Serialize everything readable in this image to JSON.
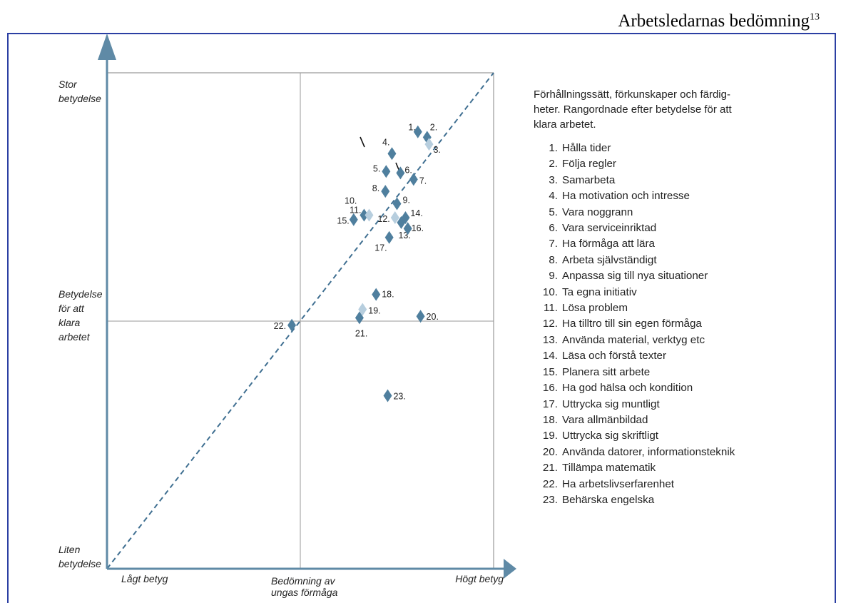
{
  "header": {
    "title": "Arbetsledarnas bedömning",
    "superscript": "13"
  },
  "chart_data": {
    "type": "scatter",
    "description_title": "Förhållningssätt, förkunskaper och färdigheter. Rangordnade efter betydelse för att klara arbetet.",
    "description_title_lines": [
      "Förhållningssätt, förkunskaper och färdig-",
      "heter. Rangordnade efter betydelse för att",
      "klara arbetet."
    ],
    "y_axis_labels": {
      "top": [
        "Stor",
        "betydelse"
      ],
      "middle": [
        "Betydelse",
        "för att",
        "klara",
        "arbetet"
      ],
      "bottom": [
        "Liten",
        "betydelse"
      ]
    },
    "x_axis_labels": {
      "left": "Lågt betyg",
      "middle": [
        "Bedömning av",
        "ungas förmåga"
      ],
      "right": "Högt betyg"
    },
    "xlim": [
      0,
      100
    ],
    "ylim": [
      0,
      100
    ],
    "points": [
      {
        "id": "1",
        "x": 80.4,
        "y": 88.1,
        "color": "#4f7f9e"
      },
      {
        "id": "2",
        "x": 82.8,
        "y": 87.0,
        "color": "#4f7f9e"
      },
      {
        "id": "3",
        "x": 83.3,
        "y": 85.6,
        "color": "#b7cede"
      },
      {
        "id": "4",
        "x": 73.7,
        "y": 83.7,
        "color": "#4f7f9e"
      },
      {
        "id": "5",
        "x": 72.2,
        "y": 80.1,
        "color": "#4f7f9e"
      },
      {
        "id": "6",
        "x": 75.9,
        "y": 79.8,
        "color": "#4f7f9e"
      },
      {
        "id": "7",
        "x": 79.3,
        "y": 78.5,
        "color": "#4f7f9e"
      },
      {
        "id": "8",
        "x": 72.0,
        "y": 76.1,
        "color": "#4f7f9e"
      },
      {
        "id": "9",
        "x": 75.0,
        "y": 73.6,
        "color": "#4f7f9e"
      },
      {
        "id": "10",
        "x": 66.5,
        "y": 71.3,
        "color": "#4f7f9e"
      },
      {
        "id": "11",
        "x": 67.8,
        "y": 71.3,
        "color": "#b7cede"
      },
      {
        "id": "12",
        "x": 74.5,
        "y": 70.8,
        "color": "#b7cede"
      },
      {
        "id": "13",
        "x": 76.1,
        "y": 69.8,
        "color": "#4f7f9e"
      },
      {
        "id": "14",
        "x": 77.2,
        "y": 70.8,
        "color": "#4f7f9e"
      },
      {
        "id": "15",
        "x": 63.8,
        "y": 70.4,
        "color": "#4f7f9e"
      },
      {
        "id": "16",
        "x": 77.8,
        "y": 68.6,
        "color": "#4f7f9e"
      },
      {
        "id": "17",
        "x": 73.0,
        "y": 66.8,
        "color": "#4f7f9e"
      },
      {
        "id": "18",
        "x": 69.6,
        "y": 55.3,
        "color": "#4f7f9e"
      },
      {
        "id": "19",
        "x": 66.1,
        "y": 52.3,
        "color": "#b7cede"
      },
      {
        "id": "20",
        "x": 81.1,
        "y": 50.9,
        "color": "#4f7f9e"
      },
      {
        "id": "21",
        "x": 65.3,
        "y": 50.6,
        "color": "#4f7f9e"
      },
      {
        "id": "22",
        "x": 47.8,
        "y": 49.1,
        "color": "#4f7f9e"
      },
      {
        "id": "23",
        "x": 72.6,
        "y": 34.9,
        "color": "#4f7f9e"
      }
    ],
    "legend": [
      {
        "num": "1.",
        "label": "Hålla tider"
      },
      {
        "num": "2.",
        "label": "Följa regler"
      },
      {
        "num": "3.",
        "label": "Samarbeta"
      },
      {
        "num": "4.",
        "label": "Ha motivation och intresse"
      },
      {
        "num": "5.",
        "label": "Vara noggrann"
      },
      {
        "num": "6.",
        "label": "Vara serviceinriktad"
      },
      {
        "num": "7.",
        "label": "Ha förmåga att lära"
      },
      {
        "num": "8.",
        "label": "Arbeta självständigt"
      },
      {
        "num": "9.",
        "label": "Anpassa sig till nya situationer"
      },
      {
        "num": "10.",
        "label": "Ta egna initiativ"
      },
      {
        "num": "11.",
        "label": "Lösa problem"
      },
      {
        "num": "12.",
        "label": "Ha tilltro till sin egen förmåga"
      },
      {
        "num": "13.",
        "label": "Använda material, verktyg etc"
      },
      {
        "num": "14.",
        "label": "Läsa och förstå texter"
      },
      {
        "num": "15.",
        "label": "Planera sitt arbete"
      },
      {
        "num": "16.",
        "label": "Ha god hälsa och kondition"
      },
      {
        "num": "17.",
        "label": "Uttrycka sig muntligt"
      },
      {
        "num": "18.",
        "label": "Vara allmänbildad"
      },
      {
        "num": "19.",
        "label": "Uttrycka sig skriftligt"
      },
      {
        "num": "20.",
        "label": "Använda datorer, informationsteknik"
      },
      {
        "num": "21.",
        "label": "Tillämpa matematik"
      },
      {
        "num": "22.",
        "label": "Ha arbetslivserfarenhet"
      },
      {
        "num": "23.",
        "label": "Behärska engelska"
      }
    ]
  },
  "colors": {
    "axis": "#5f8aa6",
    "grid": "#9a9a9a",
    "diagonal": "#3f6f91",
    "frame": "#2b3fa3"
  }
}
